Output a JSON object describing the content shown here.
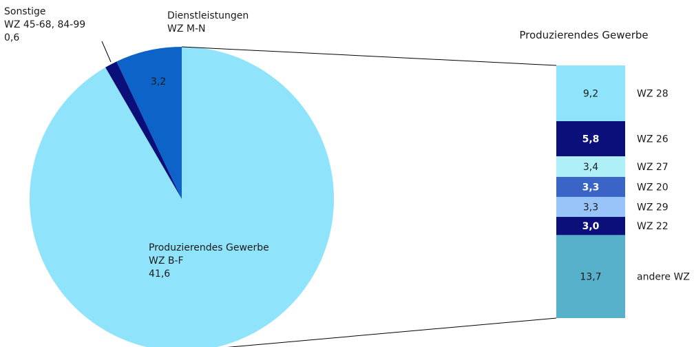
{
  "chart_data": [
    {
      "type": "pie",
      "slices": [
        {
          "label_lines": [
            "Produzierendes Gewerbe",
            "WZ B-F"
          ],
          "value": 41.6,
          "value_label": "41,6",
          "color": "#8FE4FC"
        },
        {
          "label_lines": [
            "Sonstige",
            "WZ 45-68, 84-99"
          ],
          "value": 0.6,
          "value_label": "0,6",
          "color": "#0A0F7A"
        },
        {
          "label_lines": [
            "Dienstleistungen",
            "WZ M-N"
          ],
          "value": 3.2,
          "value_label": "3,2",
          "color": "#0E63C8"
        }
      ]
    },
    {
      "type": "bar",
      "stacked": true,
      "title": "Produzierendes Gewerbe",
      "segments": [
        {
          "category": "WZ 28",
          "value": 9.2,
          "value_label": "9,2",
          "color": "#8FE4FC",
          "light_text": false
        },
        {
          "category": "WZ 26",
          "value": 5.8,
          "value_label": "5,8",
          "color": "#0A0F7A",
          "light_text": true
        },
        {
          "category": "WZ 27",
          "value": 3.4,
          "value_label": "3,4",
          "color": "#AEEFF8",
          "light_text": false
        },
        {
          "category": "WZ 20",
          "value": 3.3,
          "value_label": "3,3",
          "color": "#3A65C6",
          "light_text": true
        },
        {
          "category": "WZ 29",
          "value": 3.3,
          "value_label": "3,3",
          "color": "#98C4FA",
          "light_text": false
        },
        {
          "category": "WZ 22",
          "value": 3.0,
          "value_label": "3,0",
          "color": "#0A0F7A",
          "light_text": true
        },
        {
          "category": "andere WZ",
          "value": 13.7,
          "value_label": "13,7",
          "color": "#57B1CA",
          "light_text": false
        }
      ]
    }
  ]
}
